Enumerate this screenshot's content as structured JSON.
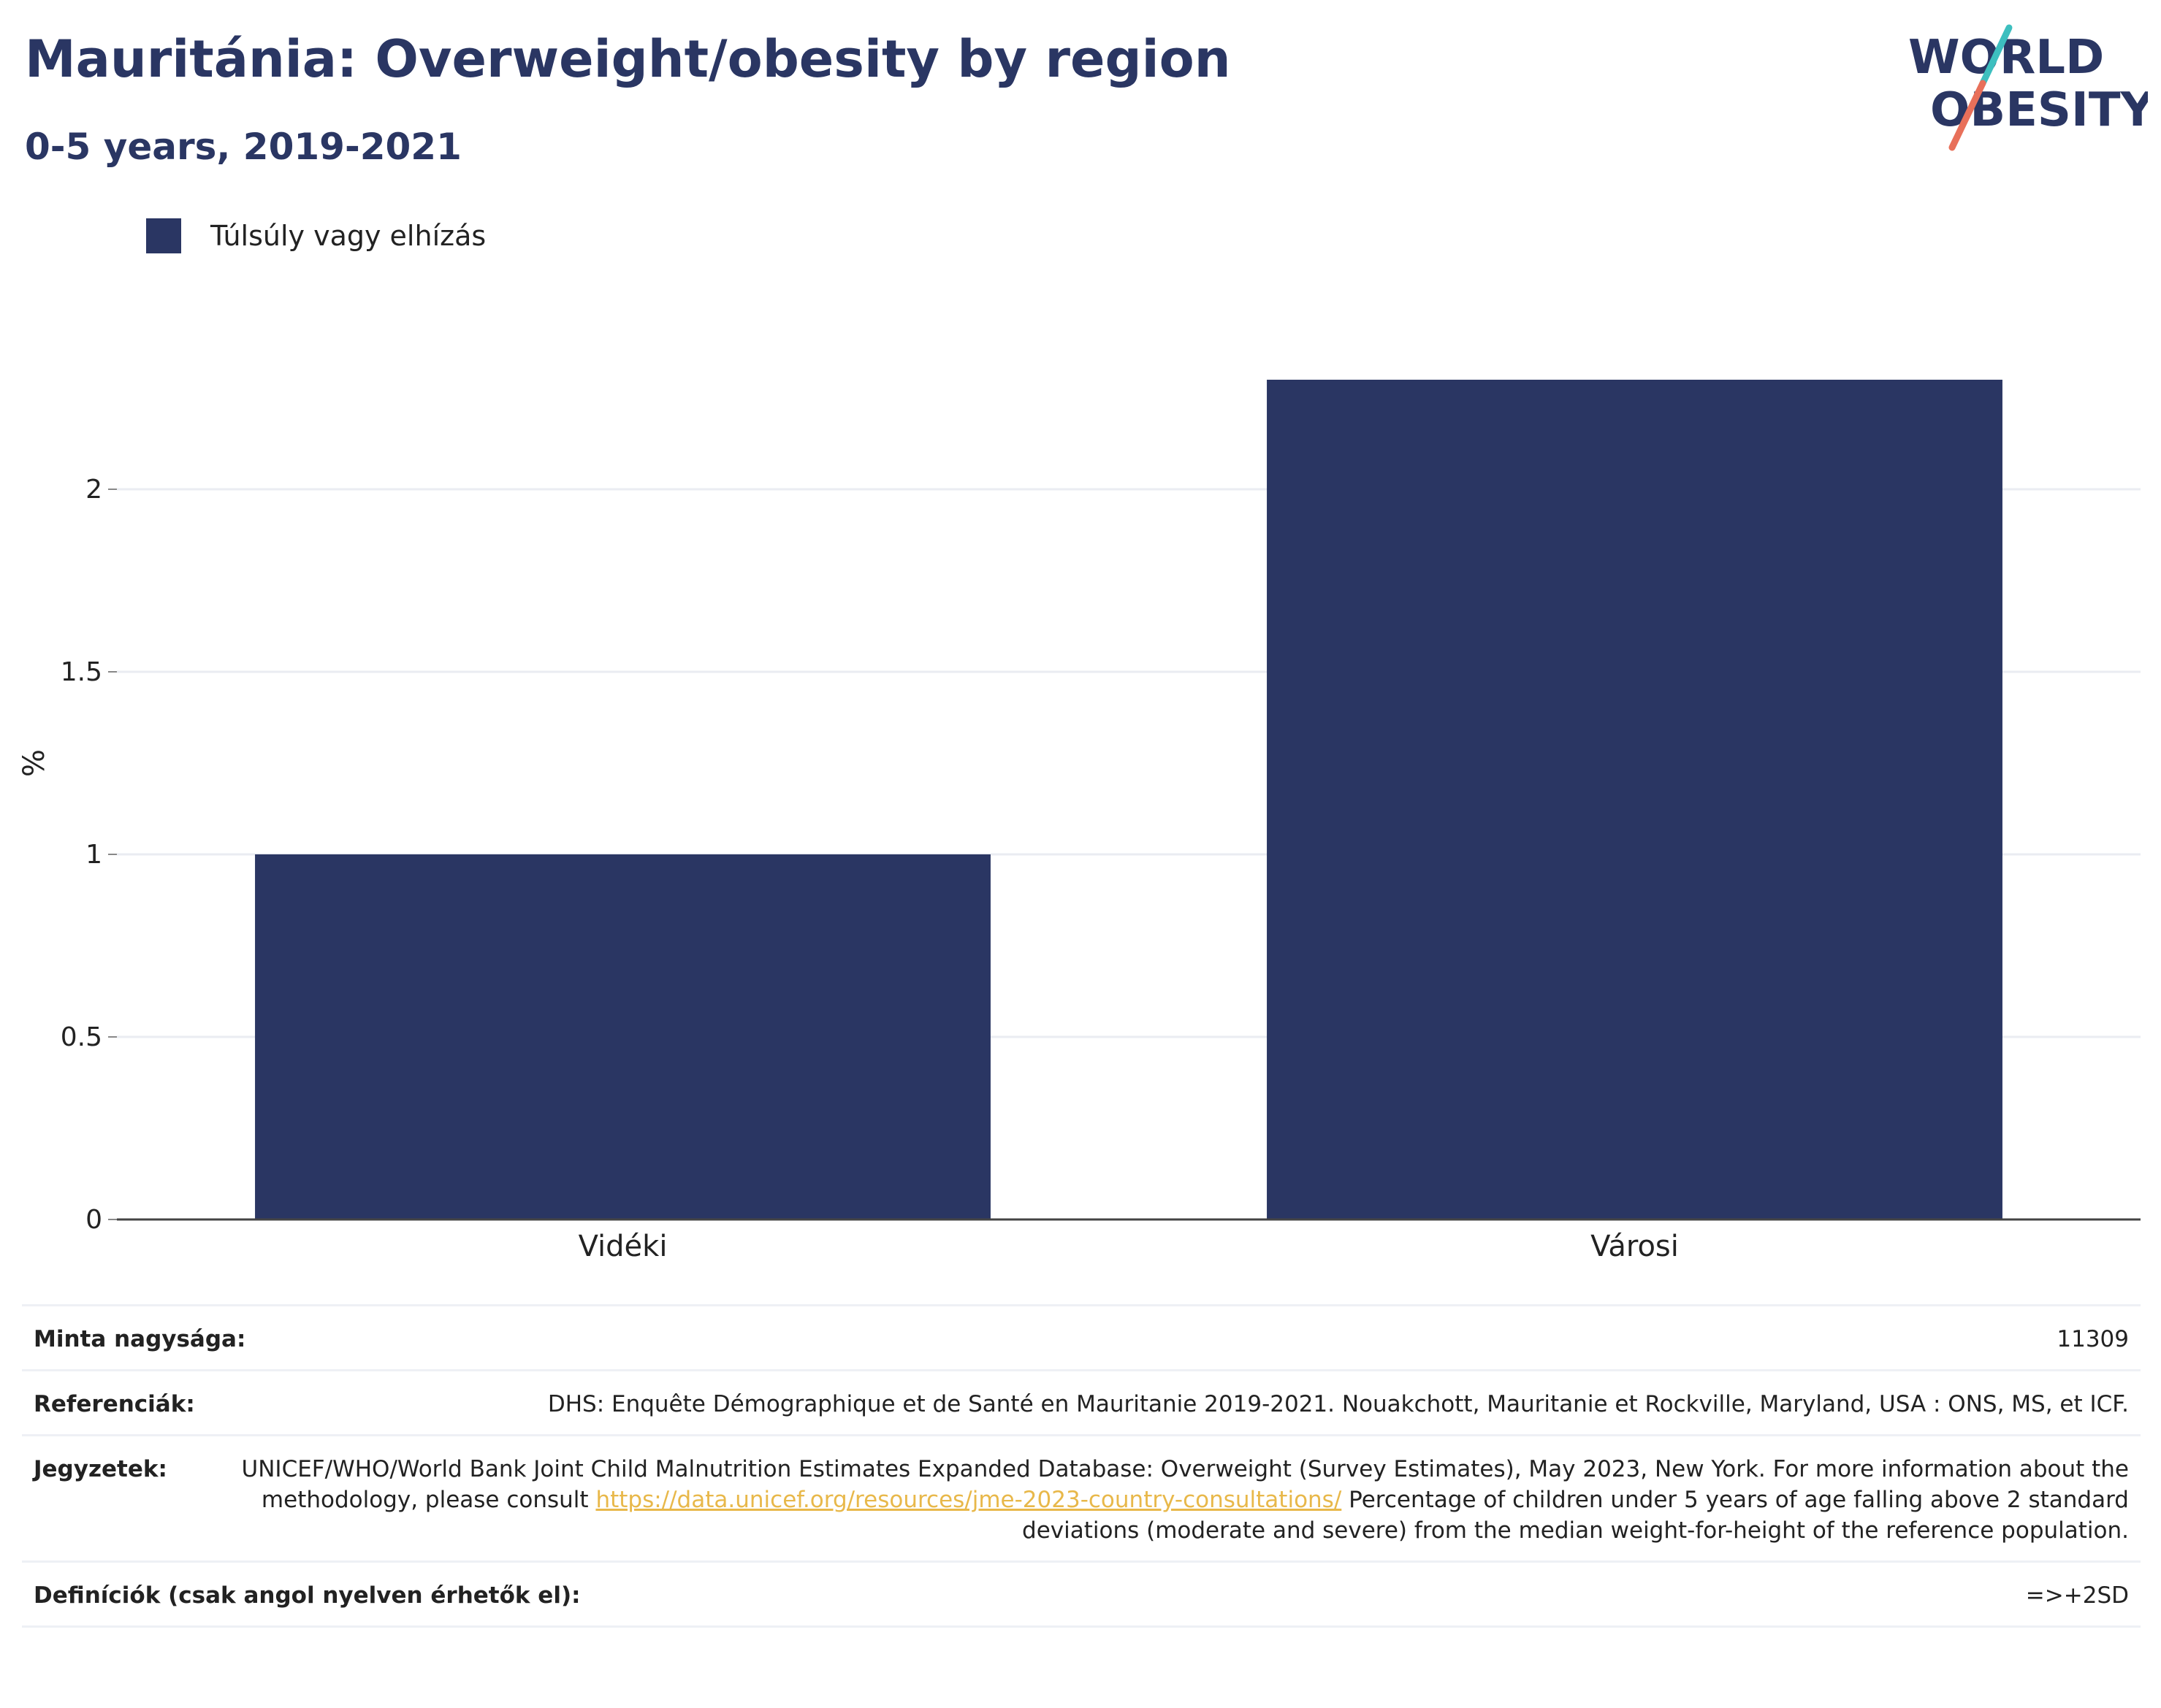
{
  "header": {
    "title": "Mauritánia: Overweight/obesity by region",
    "subtitle": "0-5 years, 2019-2021"
  },
  "logo": {
    "line1": "WORLD",
    "line2": "OBESITY",
    "colors": {
      "text": "#2a3663",
      "slash_top": "#3dbfbf",
      "slash_bottom": "#e8705a"
    }
  },
  "chart_data": {
    "type": "bar",
    "categories": [
      "Vidéki",
      "Városi"
    ],
    "series": [
      {
        "name": "Túlsúly vagy elhízás",
        "values": [
          1.0,
          2.3
        ],
        "color": "#2a3663"
      }
    ],
    "ylabel": "%",
    "ylim": [
      0,
      2.5
    ],
    "yticks": [
      0,
      0.5,
      1,
      1.5,
      2
    ],
    "ytick_labels": [
      "0",
      "0.5",
      "1",
      "1.5",
      "2"
    ],
    "grid": true,
    "legend": "top-left"
  },
  "info": {
    "sample_size_label": "Minta nagysága:",
    "sample_size_value": "11309",
    "references_label": "Referenciák:",
    "references_value": "DHS: Enquête Démographique et de Santé en Mauritanie 2019-2021. Nouakchott, Mauritanie et Rockville, Maryland, USA : ONS, MS, et ICF.",
    "notes_label": "Jegyzetek:",
    "notes_text_1": "UNICEF/WHO/World Bank Joint Child Malnutrition Estimates Expanded Database: Overweight (Survey Estimates), May 2023, New York. For more information about the methodology, please consult ",
    "notes_link": "https://data.unicef.org/resources/jme-2023-country-consultations/",
    "notes_text_2": " Percentage of children under 5 years of age falling above 2 standard deviations (moderate and severe) from the median weight-for-height of the reference population.",
    "definitions_label": "Definíciók (csak angol nyelven érhetők el):",
    "definitions_value": "=>+2SD"
  }
}
